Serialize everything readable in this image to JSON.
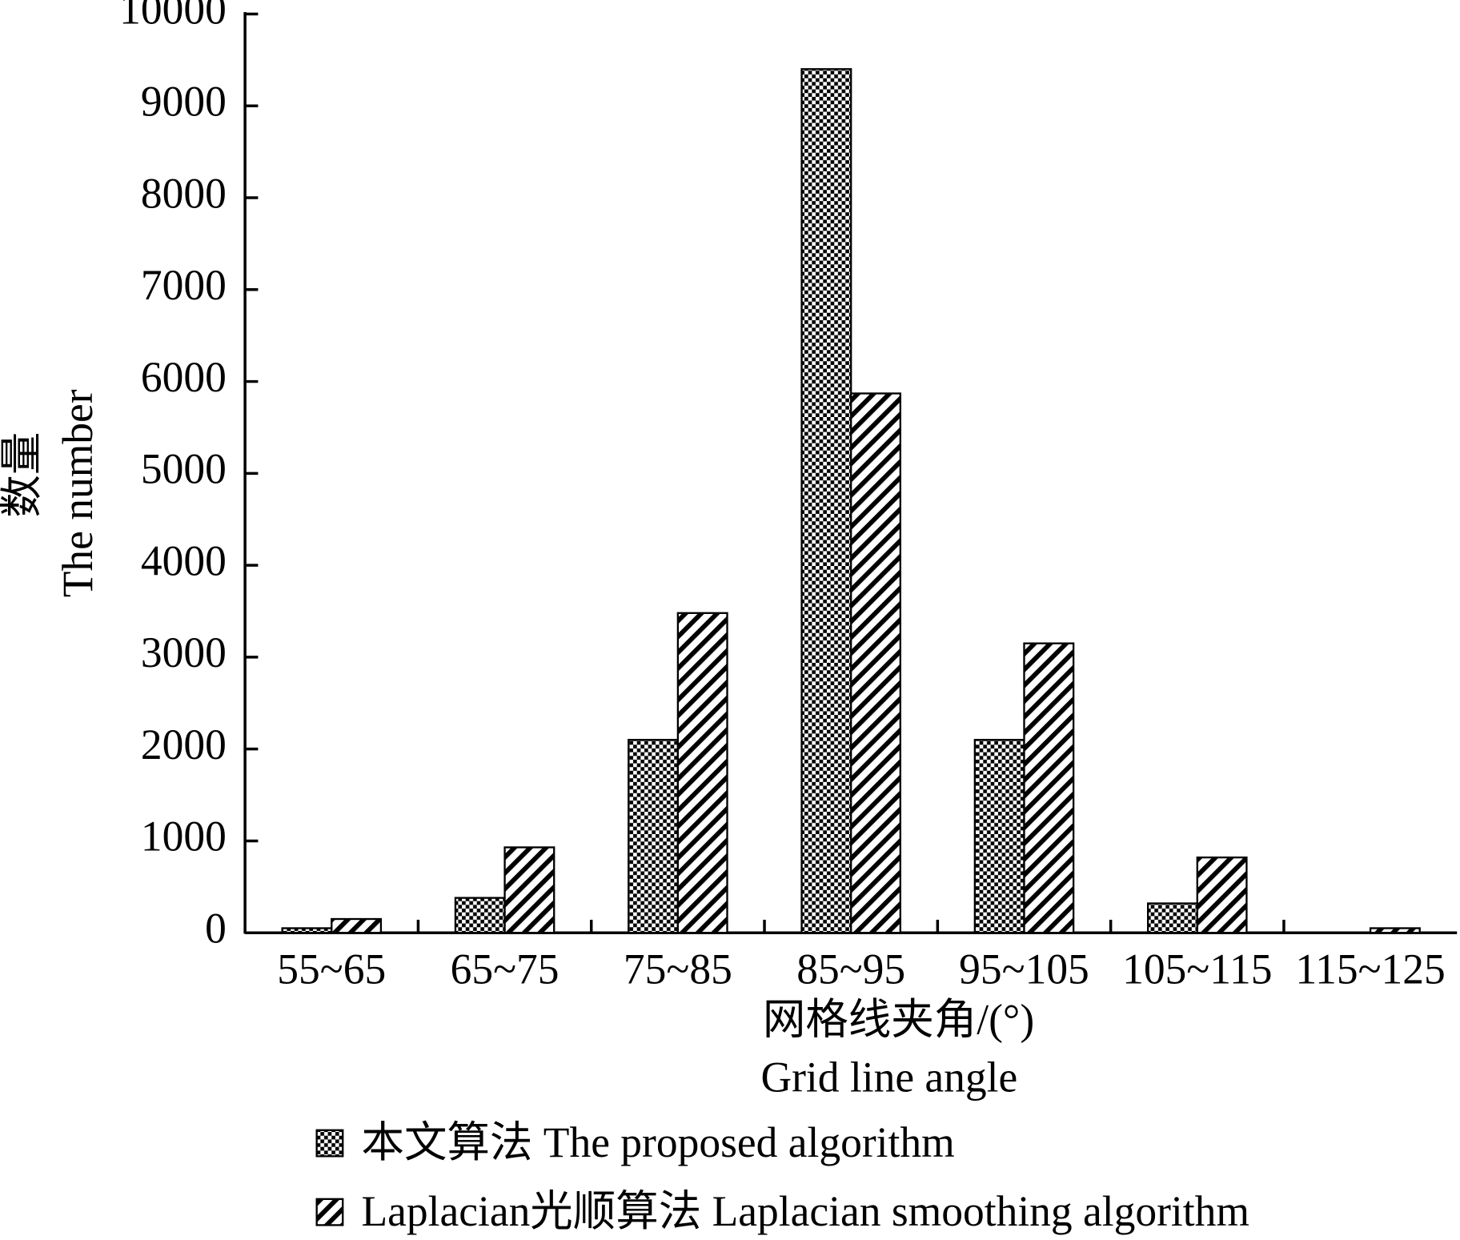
{
  "chart_data": {
    "type": "bar",
    "y_label_lines": [
      "数量",
      "The number"
    ],
    "x_label_lines": [
      "网格线夹角/(°)",
      "Grid line angle"
    ],
    "categories": [
      "55~65",
      "65~75",
      "75~85",
      "85~95",
      "95~105",
      "105~115",
      "115~125"
    ],
    "series": [
      {
        "name": "本文算法  The proposed algorithm",
        "pattern": "checker",
        "color": "#000000",
        "values": [
          50,
          380,
          2100,
          9400,
          2100,
          320,
          0
        ]
      },
      {
        "name": "Laplacian光顺算法 Laplacian smoothing algorithm",
        "pattern": "hatch",
        "color": "#000000",
        "values": [
          150,
          930,
          3480,
          5870,
          3150,
          820,
          50
        ]
      }
    ],
    "ylim": [
      0,
      10000
    ],
    "yticks": [
      0,
      1000,
      2000,
      3000,
      4000,
      5000,
      6000,
      7000,
      8000,
      9000,
      10000
    ],
    "grid": false,
    "legend": "bottom"
  }
}
